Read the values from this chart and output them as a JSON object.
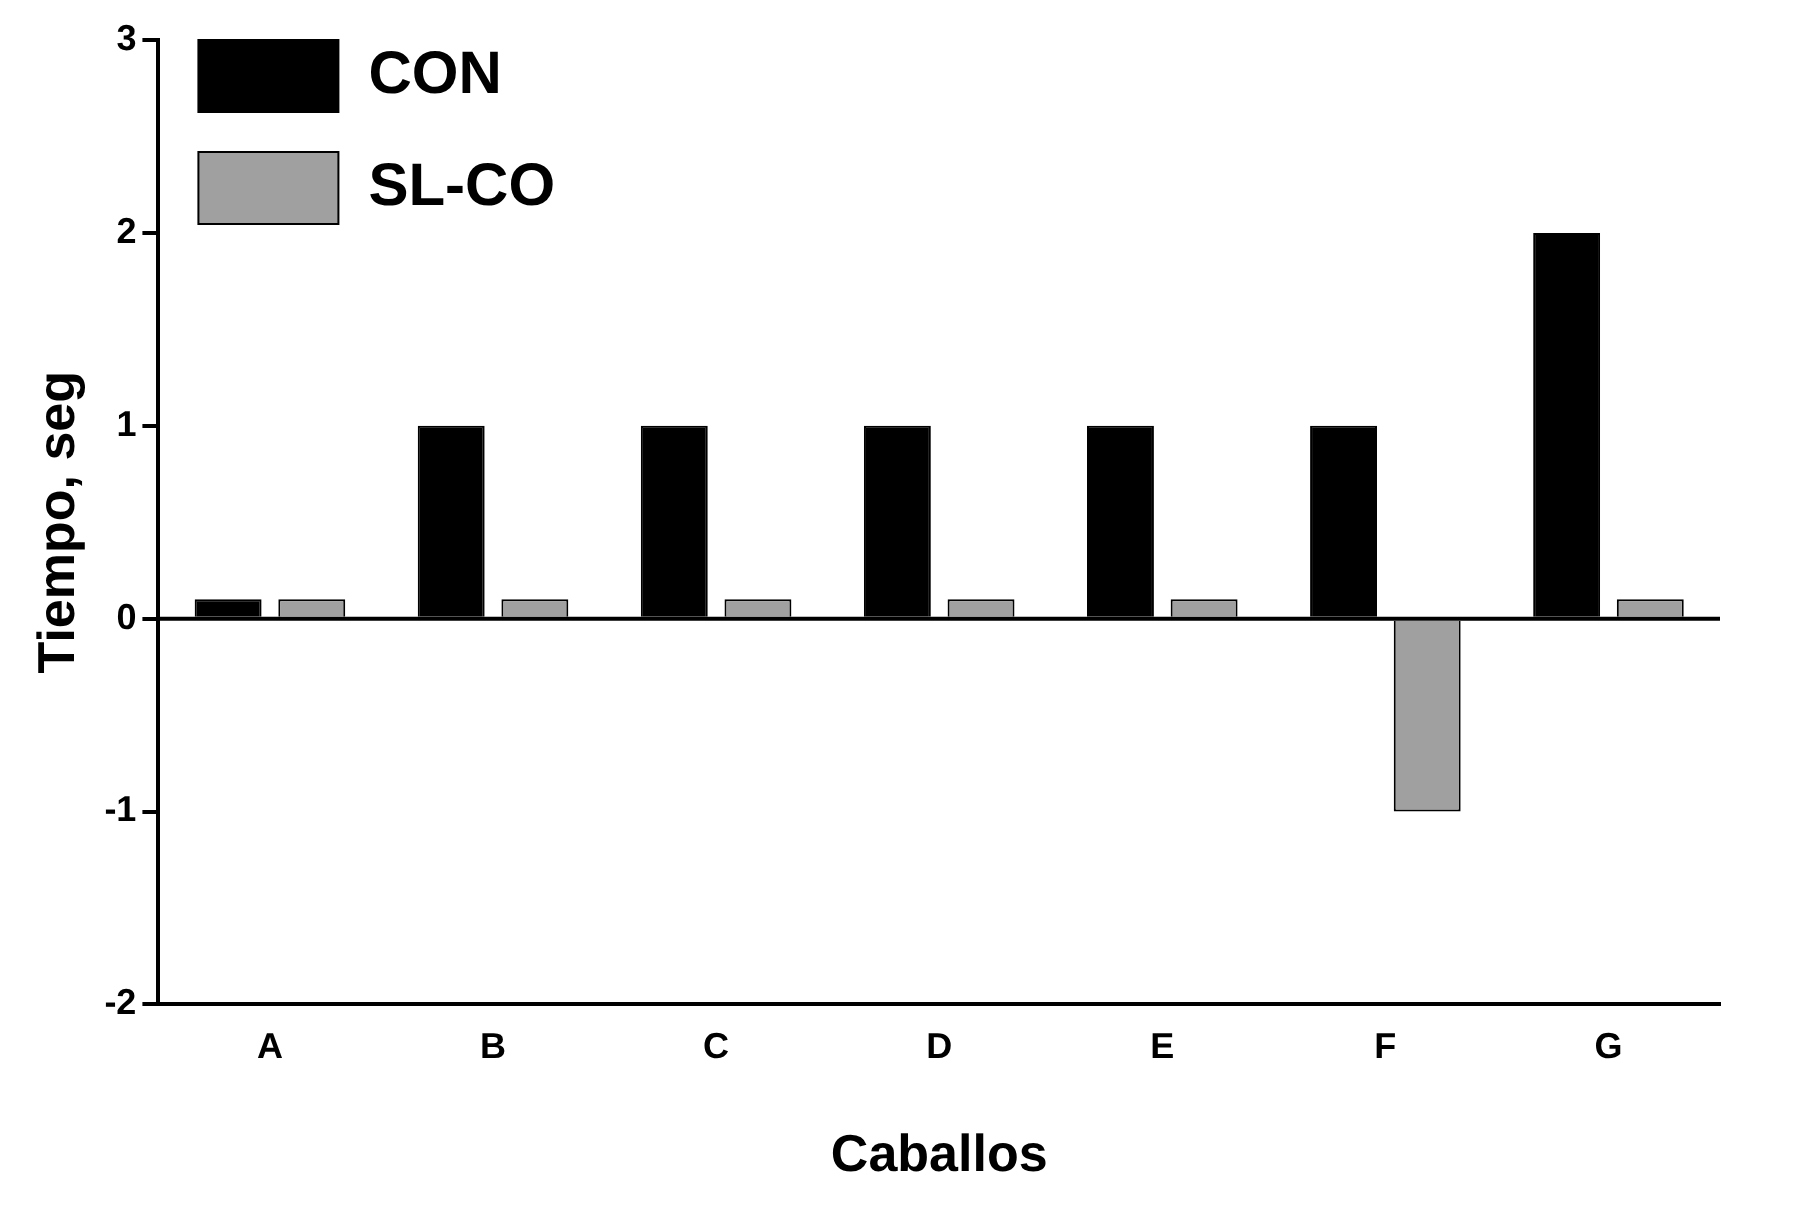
{
  "chart_data": {
    "type": "bar",
    "xlabel": "Caballos",
    "ylabel": "Tiempo, seg",
    "categories": [
      "A",
      "B",
      "C",
      "D",
      "E",
      "F",
      "G"
    ],
    "series": [
      {
        "name": "CON",
        "color": "#000000",
        "values": [
          0.1,
          1,
          1,
          1,
          1,
          1,
          2
        ]
      },
      {
        "name": "SL-CO",
        "color": "#a0a0a0",
        "values": [
          0.1,
          0.1,
          0.1,
          0.1,
          0.1,
          -1,
          0.1
        ]
      }
    ],
    "ref_lines": [
      {
        "axis": "y",
        "value": 0
      }
    ],
    "ylim": [
      -2,
      3
    ],
    "yticks": [
      -2,
      -1,
      0,
      1,
      2,
      3
    ],
    "grid": false,
    "legend": "top left"
  }
}
